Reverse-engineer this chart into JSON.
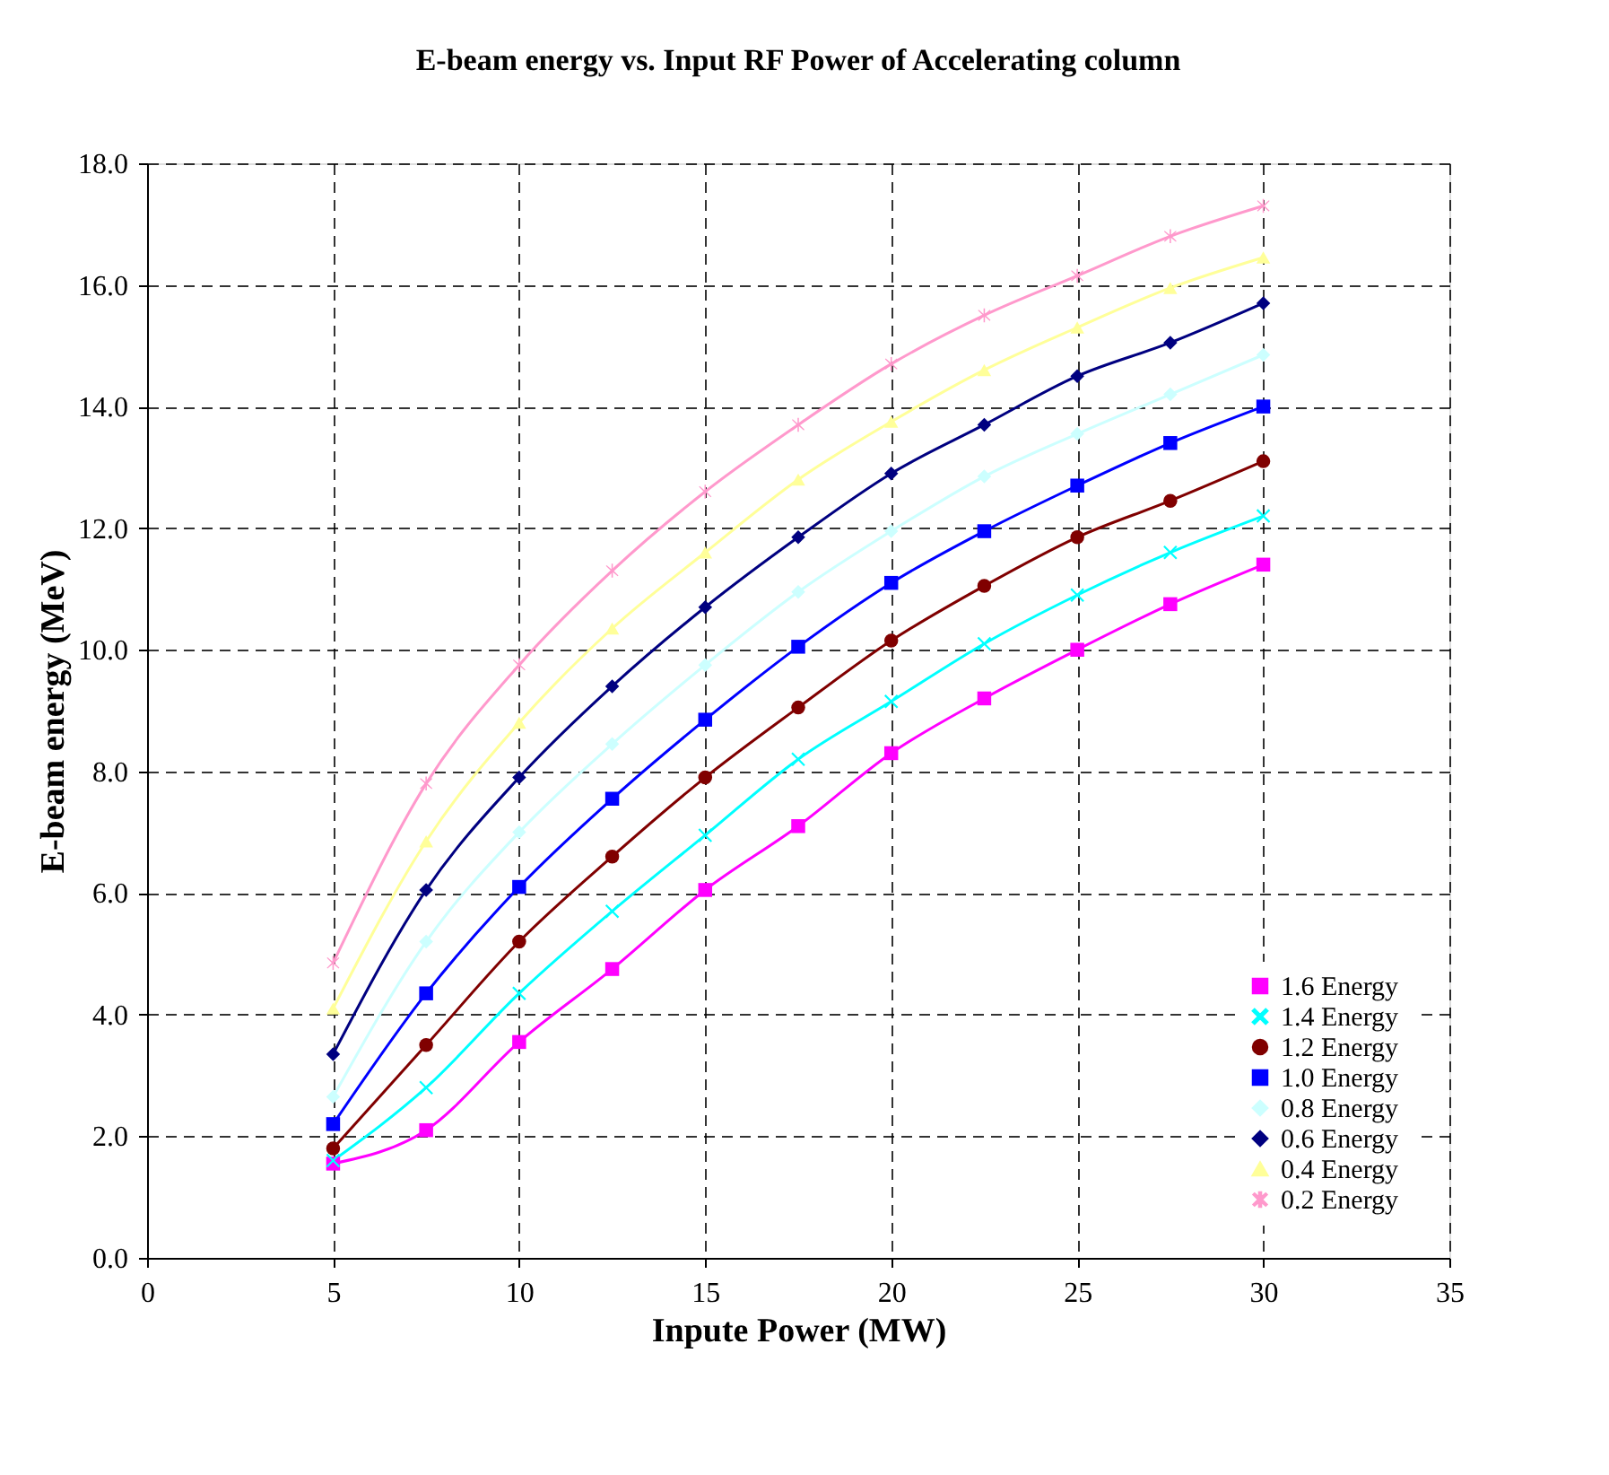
{
  "chart_data": {
    "type": "line",
    "title": "E-beam energy  vs. Input RF Power of Accelerating column",
    "xlabel": "Inpute Power (MW)",
    "ylabel": "E-beam energy (MeV)",
    "x": [
      5,
      7.5,
      10,
      12.5,
      15,
      17.5,
      20,
      22.5,
      25,
      27.5,
      30
    ],
    "series": [
      {
        "name": "1.6  Energy",
        "color": "#ff00ff",
        "marker": "square",
        "values": [
          1.55,
          2.1,
          3.55,
          4.75,
          6.05,
          7.1,
          8.3,
          9.2,
          10.0,
          10.75,
          11.4
        ]
      },
      {
        "name": "1.4  Energy",
        "color": "#00ffff",
        "marker": "cross",
        "values": [
          1.6,
          2.8,
          4.35,
          5.7,
          6.95,
          8.2,
          9.15,
          10.1,
          10.9,
          11.6,
          12.2
        ]
      },
      {
        "name": "1.2  Energy",
        "color": "#800000",
        "marker": "circle",
        "values": [
          1.8,
          3.5,
          5.2,
          6.6,
          7.9,
          9.05,
          10.15,
          11.05,
          11.85,
          12.45,
          13.1
        ]
      },
      {
        "name": "1.0  Energy",
        "color": "#0000ff",
        "marker": "square",
        "values": [
          2.2,
          4.35,
          6.1,
          7.55,
          8.85,
          10.05,
          11.1,
          11.95,
          12.7,
          13.4,
          14.0
        ]
      },
      {
        "name": "0.8  Energy",
        "color": "#ccffff",
        "marker": "diamond",
        "values": [
          2.65,
          5.2,
          7.0,
          8.45,
          9.75,
          10.95,
          11.95,
          12.85,
          13.55,
          14.2,
          14.85
        ]
      },
      {
        "name": "0.6  Energy",
        "color": "#000080",
        "marker": "diamond",
        "values": [
          3.35,
          6.05,
          7.9,
          9.4,
          10.7,
          11.85,
          12.9,
          13.7,
          14.5,
          15.05,
          15.7
        ]
      },
      {
        "name": "0.4  Energy",
        "color": "#ffff99",
        "marker": "triangle",
        "values": [
          4.1,
          6.85,
          8.8,
          10.35,
          11.6,
          12.8,
          13.75,
          14.6,
          15.3,
          15.95,
          16.45
        ]
      },
      {
        "name": "0.2  Energy",
        "color": "#ff99cc",
        "marker": "star",
        "values": [
          4.85,
          7.8,
          9.75,
          11.3,
          12.6,
          13.7,
          14.7,
          15.5,
          16.15,
          16.8,
          17.3
        ]
      }
    ],
    "xlim": [
      0,
      35
    ],
    "xticks": [
      0,
      5,
      10,
      15,
      20,
      25,
      30,
      35
    ],
    "ylim": [
      0,
      18
    ],
    "yticks": [
      {
        "value": 0,
        "label": "0.0"
      },
      {
        "value": 2,
        "label": "2.0"
      },
      {
        "value": 4,
        "label": "4.0"
      },
      {
        "value": 6,
        "label": "6.0"
      },
      {
        "value": 8,
        "label": "8.0"
      },
      {
        "value": 10,
        "label": "10.0"
      },
      {
        "value": 12,
        "label": "12.0"
      },
      {
        "value": 14,
        "label": "14.0"
      },
      {
        "value": 16,
        "label": "16.0"
      },
      {
        "value": 18,
        "label": "18.0"
      }
    ],
    "grid": true,
    "legend": "bottom right",
    "line_style": "solid"
  }
}
